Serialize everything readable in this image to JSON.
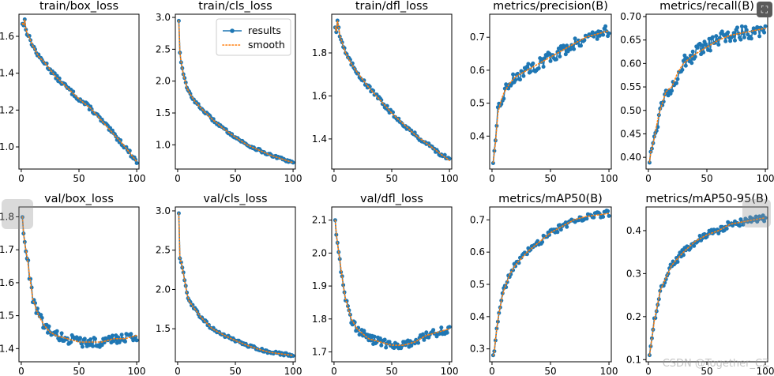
{
  "watermark": "CSDN @Together_CZ",
  "colors": {
    "results": "#1f77b4",
    "smooth": "#ff7f0e"
  },
  "legend": {
    "results": "results",
    "smooth": "smooth"
  },
  "chart_data": [
    {
      "id": "train-box-loss",
      "type": "line",
      "title": "train/box_loss",
      "xlim": [
        -2,
        102
      ],
      "ylim": [
        0.88,
        1.72
      ],
      "xticks": [
        0,
        50,
        100
      ],
      "yticks": [
        1.0,
        1.2,
        1.4,
        1.6
      ],
      "legend": false,
      "key_points": [
        [
          1,
          1.67
        ],
        [
          2,
          1.66
        ],
        [
          3,
          1.69
        ],
        [
          4,
          1.64
        ],
        [
          5,
          1.62
        ],
        [
          10,
          1.55
        ],
        [
          15,
          1.49
        ],
        [
          20,
          1.46
        ],
        [
          30,
          1.38
        ],
        [
          40,
          1.32
        ],
        [
          50,
          1.26
        ],
        [
          60,
          1.21
        ],
        [
          70,
          1.14
        ],
        [
          80,
          1.07
        ],
        [
          90,
          1.0
        ],
        [
          95,
          0.96
        ],
        [
          100,
          0.92
        ]
      ],
      "noise": 0.012
    },
    {
      "id": "train-cls-loss",
      "type": "line",
      "title": "train/cls_loss",
      "xlim": [
        -2,
        102
      ],
      "ylim": [
        0.62,
        3.05
      ],
      "xticks": [
        0,
        50,
        100
      ],
      "yticks": [
        1.0,
        1.5,
        2.0,
        2.5,
        3.0
      ],
      "legend": true,
      "key_points": [
        [
          1,
          2.95
        ],
        [
          2,
          2.45
        ],
        [
          3,
          2.3
        ],
        [
          4,
          2.2
        ],
        [
          5,
          2.1
        ],
        [
          8,
          1.9
        ],
        [
          10,
          1.82
        ],
        [
          15,
          1.68
        ],
        [
          20,
          1.58
        ],
        [
          30,
          1.4
        ],
        [
          40,
          1.25
        ],
        [
          50,
          1.12
        ],
        [
          60,
          1.0
        ],
        [
          70,
          0.92
        ],
        [
          80,
          0.84
        ],
        [
          90,
          0.78
        ],
        [
          100,
          0.72
        ]
      ],
      "noise": 0.02
    },
    {
      "id": "train-dfl-loss",
      "type": "line",
      "title": "train/dfl_loss",
      "xlim": [
        -2,
        102
      ],
      "ylim": [
        1.26,
        1.98
      ],
      "xticks": [
        0,
        50,
        100
      ],
      "yticks": [
        1.4,
        1.6,
        1.8
      ],
      "legend": false,
      "key_points": [
        [
          1,
          1.92
        ],
        [
          2,
          1.9
        ],
        [
          3,
          1.95
        ],
        [
          4,
          1.92
        ],
        [
          5,
          1.88
        ],
        [
          10,
          1.8
        ],
        [
          15,
          1.75
        ],
        [
          20,
          1.71
        ],
        [
          30,
          1.64
        ],
        [
          40,
          1.58
        ],
        [
          50,
          1.52
        ],
        [
          60,
          1.47
        ],
        [
          70,
          1.42
        ],
        [
          80,
          1.38
        ],
        [
          90,
          1.34
        ],
        [
          100,
          1.3
        ]
      ],
      "noise": 0.01
    },
    {
      "id": "metrics-precision",
      "type": "line",
      "title": "metrics/precision(B)",
      "xlim": [
        -2,
        102
      ],
      "ylim": [
        0.3,
        0.77
      ],
      "xticks": [
        0,
        50,
        100
      ],
      "yticks": [
        0.4,
        0.5,
        0.6,
        0.7
      ],
      "legend": false,
      "key_points": [
        [
          1,
          0.32
        ],
        [
          2,
          0.35
        ],
        [
          3,
          0.38
        ],
        [
          5,
          0.47
        ],
        [
          8,
          0.51
        ],
        [
          10,
          0.53
        ],
        [
          15,
          0.56
        ],
        [
          20,
          0.58
        ],
        [
          30,
          0.6
        ],
        [
          40,
          0.62
        ],
        [
          50,
          0.64
        ],
        [
          60,
          0.66
        ],
        [
          70,
          0.68
        ],
        [
          80,
          0.7
        ],
        [
          90,
          0.71
        ],
        [
          100,
          0.72
        ]
      ],
      "noise": 0.018
    },
    {
      "id": "metrics-recall",
      "type": "line",
      "title": "metrics/recall(B)",
      "xlim": [
        -2,
        102
      ],
      "ylim": [
        0.375,
        0.705
      ],
      "xticks": [
        0,
        50,
        100
      ],
      "yticks": [
        0.4,
        0.45,
        0.5,
        0.55,
        0.6,
        0.65,
        0.7
      ],
      "legend": false,
      "key_points": [
        [
          1,
          0.39
        ],
        [
          2,
          0.41
        ],
        [
          5,
          0.44
        ],
        [
          8,
          0.48
        ],
        [
          10,
          0.5
        ],
        [
          15,
          0.54
        ],
        [
          20,
          0.55
        ],
        [
          25,
          0.58
        ],
        [
          30,
          0.6
        ],
        [
          40,
          0.62
        ],
        [
          50,
          0.635
        ],
        [
          60,
          0.65
        ],
        [
          70,
          0.66
        ],
        [
          80,
          0.665
        ],
        [
          90,
          0.67
        ],
        [
          100,
          0.675
        ]
      ],
      "noise": 0.016
    },
    {
      "id": "val-box-loss",
      "type": "line",
      "title": "val/box_loss",
      "xlim": [
        -2,
        102
      ],
      "ylim": [
        1.36,
        1.83
      ],
      "xticks": [
        0,
        50,
        100
      ],
      "yticks": [
        1.4,
        1.5,
        1.6,
        1.7,
        1.8
      ],
      "legend": false,
      "key_points": [
        [
          1,
          1.8
        ],
        [
          2,
          1.75
        ],
        [
          3,
          1.72
        ],
        [
          5,
          1.68
        ],
        [
          8,
          1.6
        ],
        [
          10,
          1.55
        ],
        [
          15,
          1.5
        ],
        [
          20,
          1.47
        ],
        [
          25,
          1.45
        ],
        [
          30,
          1.44
        ],
        [
          40,
          1.43
        ],
        [
          50,
          1.42
        ],
        [
          60,
          1.42
        ],
        [
          70,
          1.42
        ],
        [
          80,
          1.43
        ],
        [
          90,
          1.43
        ],
        [
          100,
          1.44
        ]
      ],
      "noise": 0.015
    },
    {
      "id": "val-cls-loss",
      "type": "line",
      "title": "val/cls_loss",
      "xlim": [
        -2,
        102
      ],
      "ylim": [
        1.08,
        3.05
      ],
      "xticks": [
        0,
        50,
        100
      ],
      "yticks": [
        1.5,
        2.0,
        2.5,
        3.0
      ],
      "legend": false,
      "key_points": [
        [
          1,
          2.97
        ],
        [
          2,
          2.4
        ],
        [
          3,
          2.35
        ],
        [
          5,
          2.2
        ],
        [
          8,
          1.95
        ],
        [
          10,
          1.85
        ],
        [
          15,
          1.75
        ],
        [
          20,
          1.65
        ],
        [
          30,
          1.5
        ],
        [
          40,
          1.42
        ],
        [
          50,
          1.35
        ],
        [
          60,
          1.29
        ],
        [
          70,
          1.24
        ],
        [
          80,
          1.2
        ],
        [
          90,
          1.18
        ],
        [
          100,
          1.16
        ]
      ],
      "noise": 0.02
    },
    {
      "id": "val-dfl-loss",
      "type": "line",
      "title": "val/dfl_loss",
      "xlim": [
        -2,
        102
      ],
      "ylim": [
        1.67,
        2.14
      ],
      "xticks": [
        0,
        50,
        100
      ],
      "yticks": [
        1.7,
        1.8,
        1.9,
        2.0,
        2.1
      ],
      "legend": false,
      "key_points": [
        [
          1,
          2.1
        ],
        [
          2,
          2.06
        ],
        [
          3,
          2.03
        ],
        [
          5,
          1.98
        ],
        [
          8,
          1.9
        ],
        [
          10,
          1.86
        ],
        [
          15,
          1.8
        ],
        [
          20,
          1.77
        ],
        [
          30,
          1.74
        ],
        [
          40,
          1.73
        ],
        [
          50,
          1.72
        ],
        [
          60,
          1.72
        ],
        [
          70,
          1.73
        ],
        [
          80,
          1.75
        ],
        [
          90,
          1.76
        ],
        [
          100,
          1.77
        ]
      ],
      "noise": 0.012
    },
    {
      "id": "metrics-map50",
      "type": "line",
      "title": "metrics/mAP50(B)",
      "xlim": [
        -2,
        102
      ],
      "ylim": [
        0.26,
        0.74
      ],
      "xticks": [
        0,
        50,
        100
      ],
      "yticks": [
        0.3,
        0.4,
        0.5,
        0.6,
        0.7
      ],
      "legend": false,
      "key_points": [
        [
          1,
          0.28
        ],
        [
          2,
          0.29
        ],
        [
          3,
          0.33
        ],
        [
          5,
          0.39
        ],
        [
          8,
          0.45
        ],
        [
          10,
          0.48
        ],
        [
          15,
          0.53
        ],
        [
          20,
          0.56
        ],
        [
          30,
          0.6
        ],
        [
          40,
          0.63
        ],
        [
          50,
          0.66
        ],
        [
          60,
          0.68
        ],
        [
          70,
          0.7
        ],
        [
          80,
          0.71
        ],
        [
          90,
          0.715
        ],
        [
          100,
          0.72
        ]
      ],
      "noise": 0.01
    },
    {
      "id": "metrics-map50-95",
      "type": "line",
      "title": "metrics/mAP50-95(B)",
      "xlim": [
        -2,
        102
      ],
      "ylim": [
        0.095,
        0.455
      ],
      "xticks": [
        0,
        50,
        100
      ],
      "yticks": [
        0.1,
        0.2,
        0.3,
        0.4
      ],
      "legend": false,
      "key_points": [
        [
          1,
          0.11
        ],
        [
          2,
          0.13
        ],
        [
          3,
          0.15
        ],
        [
          5,
          0.19
        ],
        [
          8,
          0.23
        ],
        [
          10,
          0.26
        ],
        [
          15,
          0.29
        ],
        [
          20,
          0.32
        ],
        [
          30,
          0.35
        ],
        [
          40,
          0.375
        ],
        [
          50,
          0.39
        ],
        [
          60,
          0.4
        ],
        [
          70,
          0.415
        ],
        [
          80,
          0.42
        ],
        [
          90,
          0.425
        ],
        [
          100,
          0.43
        ]
      ],
      "noise": 0.008
    }
  ]
}
